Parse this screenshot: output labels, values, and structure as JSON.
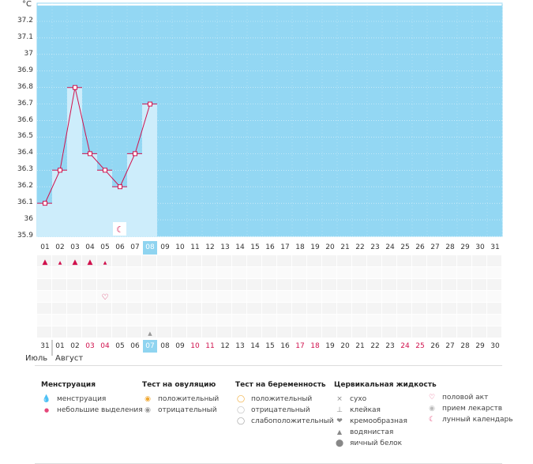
{
  "chart_data": {
    "type": "line",
    "unit": "°C",
    "ylim": [
      35.9,
      37.3
    ],
    "yticks": [
      "37.2",
      "37.1",
      "37",
      "36.9",
      "36.8",
      "36.7",
      "36.6",
      "36.5",
      "36.4",
      "36.3",
      "36.2",
      "36.1",
      "36",
      "35.9"
    ],
    "days": [
      "01",
      "02",
      "03",
      "04",
      "05",
      "06",
      "07",
      "08",
      "09",
      "10",
      "11",
      "12",
      "13",
      "14",
      "15",
      "16",
      "17",
      "18",
      "19",
      "20",
      "21",
      "22",
      "23",
      "24",
      "25",
      "26",
      "27",
      "28",
      "29",
      "30",
      "31"
    ],
    "selected_day": "08",
    "temperature": [
      36.1,
      36.3,
      36.8,
      36.4,
      36.3,
      36.2,
      36.4,
      36.7
    ],
    "dates": [
      "31",
      "01",
      "02",
      "03",
      "04",
      "05",
      "06",
      "07",
      "08",
      "09",
      "10",
      "11",
      "12",
      "13",
      "14",
      "15",
      "16",
      "17",
      "18",
      "19",
      "20",
      "21",
      "22",
      "23",
      "24",
      "25",
      "26",
      "27",
      "28",
      "29",
      "30"
    ],
    "red_dates": [
      "03",
      "04",
      "10",
      "11",
      "17",
      "18",
      "24",
      "25"
    ],
    "selected_date": "07",
    "months": [
      "Июль",
      "Август"
    ],
    "events": {
      "menstruation": [
        1,
        3,
        4
      ],
      "spotting": [
        2,
        5
      ],
      "lunar": [
        6
      ],
      "intercourse": [
        5
      ],
      "fluid_watery": [
        8
      ]
    }
  },
  "legend": {
    "menstruation": {
      "title": "Менструация",
      "items": [
        {
          "icon": "drop-big-icon",
          "label": "менструация"
        },
        {
          "icon": "drop-small-icon",
          "label": "небольшие выделения"
        }
      ]
    },
    "ovulation": {
      "title": "Тест на овуляцию",
      "items": [
        {
          "icon": "ovulation-positive-icon",
          "label": "положительный"
        },
        {
          "icon": "ovulation-negative-icon",
          "label": "отрицательный"
        }
      ]
    },
    "pregnancy": {
      "title": "Тест на беременность",
      "items": [
        {
          "icon": "pregnancy-positive-icon",
          "label": "положительный"
        },
        {
          "icon": "pregnancy-negative-icon",
          "label": "отрицательный"
        },
        {
          "icon": "pregnancy-weak-icon",
          "label": "слабоположительный"
        }
      ]
    },
    "fluid": {
      "title": "Цервикальная жидкость",
      "items": [
        {
          "icon": "dry-icon",
          "label": "сухо"
        },
        {
          "icon": "sticky-icon",
          "label": "клейкая"
        },
        {
          "icon": "creamy-icon",
          "label": "кремообразная"
        },
        {
          "icon": "watery-icon",
          "label": "водянистая"
        },
        {
          "icon": "eggwhite-icon",
          "label": "яичный белок"
        }
      ]
    },
    "other": {
      "items": [
        {
          "icon": "heart-icon",
          "label": "половой акт"
        },
        {
          "icon": "pill-icon",
          "label": "прием лекарств"
        },
        {
          "icon": "moon-icon",
          "label": "лунный календарь"
        }
      ]
    }
  },
  "colors": {
    "plot_bg": "#93d7f3",
    "bar": "#cdedfb",
    "line": "#d0104c",
    "accent": "#8fd4f0"
  }
}
